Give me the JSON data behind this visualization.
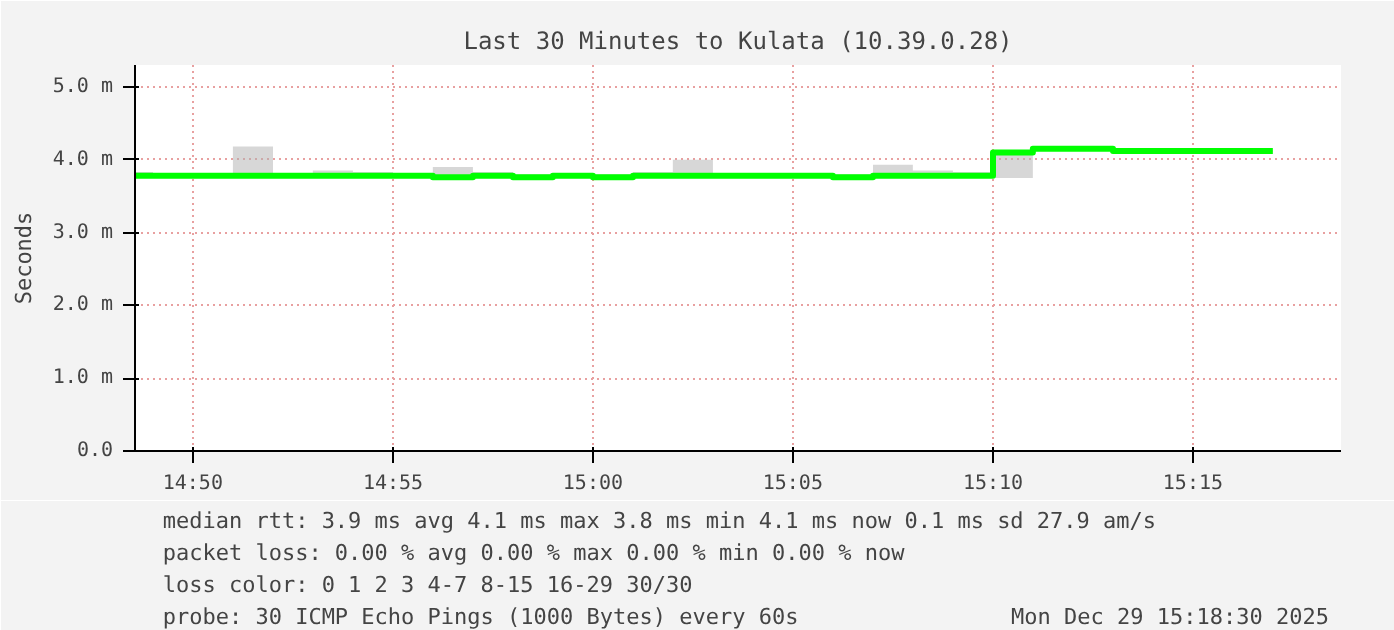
{
  "chart_data": {
    "type": "step",
    "title": "Last 30 Minutes to Kulata (10.39.0.28)",
    "ylabel": "Seconds",
    "x": [
      14.8092,
      14.8167,
      14.8333,
      14.85,
      14.8667,
      14.8833,
      14.9,
      14.9167,
      14.9333,
      14.95,
      14.9667,
      14.9833,
      15.0,
      15.0167,
      15.0333,
      15.05,
      15.0667,
      15.0833,
      15.1,
      15.1167,
      15.1333,
      15.15,
      15.1667,
      15.1833,
      15.2,
      15.2167,
      15.2333,
      15.25,
      15.2667,
      15.2833
    ],
    "series": [
      {
        "color": "#00ff00",
        "values": [
          3.78,
          3.78,
          3.78,
          3.78,
          3.78,
          3.78,
          3.78,
          3.78,
          3.76,
          3.78,
          3.76,
          3.78,
          3.76,
          3.78,
          3.78,
          3.78,
          3.78,
          3.78,
          3.76,
          3.78,
          3.78,
          3.78,
          4.1,
          4.15,
          4.15,
          4.12,
          4.12,
          4.12,
          4.12,
          4.12
        ],
        "lower": [
          3.77,
          3.77,
          3.77,
          3.77,
          3.76,
          3.77,
          3.76,
          3.75,
          3.75,
          3.76,
          3.75,
          3.77,
          3.75,
          3.76,
          3.76,
          3.77,
          3.77,
          3.77,
          3.75,
          3.77,
          3.77,
          3.77,
          3.75,
          4.12,
          4.12,
          4.11,
          4.11,
          4.11,
          4.11,
          4.11
        ],
        "upper": [
          3.83,
          3.8,
          3.8,
          4.18,
          3.8,
          3.85,
          3.83,
          3.8,
          3.9,
          3.83,
          3.8,
          3.8,
          3.8,
          3.83,
          4.0,
          3.8,
          3.8,
          3.8,
          3.8,
          3.93,
          3.85,
          3.83,
          4.12,
          4.17,
          4.17,
          4.13,
          4.13,
          4.15,
          4.13,
          4.13
        ]
      }
    ],
    "xlim": [
      14.8092,
      15.3117
    ],
    "ylim": [
      0,
      5.3
    ],
    "xticks": [
      {
        "value": 14.8333,
        "label": "14:50"
      },
      {
        "value": 14.9167,
        "label": "14:55"
      },
      {
        "value": 15.0,
        "label": "15:00"
      },
      {
        "value": 15.0833,
        "label": "15:05"
      },
      {
        "value": 15.1667,
        "label": "15:10"
      },
      {
        "value": 15.25,
        "label": "15:15"
      }
    ],
    "yticks": [
      {
        "value": 0,
        "label": "0.0"
      },
      {
        "value": 1,
        "label": "1.0 m"
      },
      {
        "value": 2,
        "label": "2.0 m"
      },
      {
        "value": 3,
        "label": "3.0 m"
      },
      {
        "value": 4,
        "label": "4.0 m"
      },
      {
        "value": 5,
        "label": "5.0 m"
      }
    ],
    "grid": true,
    "annotations": [
      "median rtt:  3.9 ms avg   4.1 ms max   3.8 ms min   4.1 ms now   0.1 ms sd   27.9    am/s",
      "packet loss: 0.00 % avg   0.00 % max   0.00 % min   0.00 % now",
      "loss color:  0   1   2   3   4-7   8-15   16-29   30/30",
      "probe:       30 ICMP Echo Pings (1000 Bytes) every 60s",
      "Mon Dec 29 15:18:30 2025"
    ]
  }
}
